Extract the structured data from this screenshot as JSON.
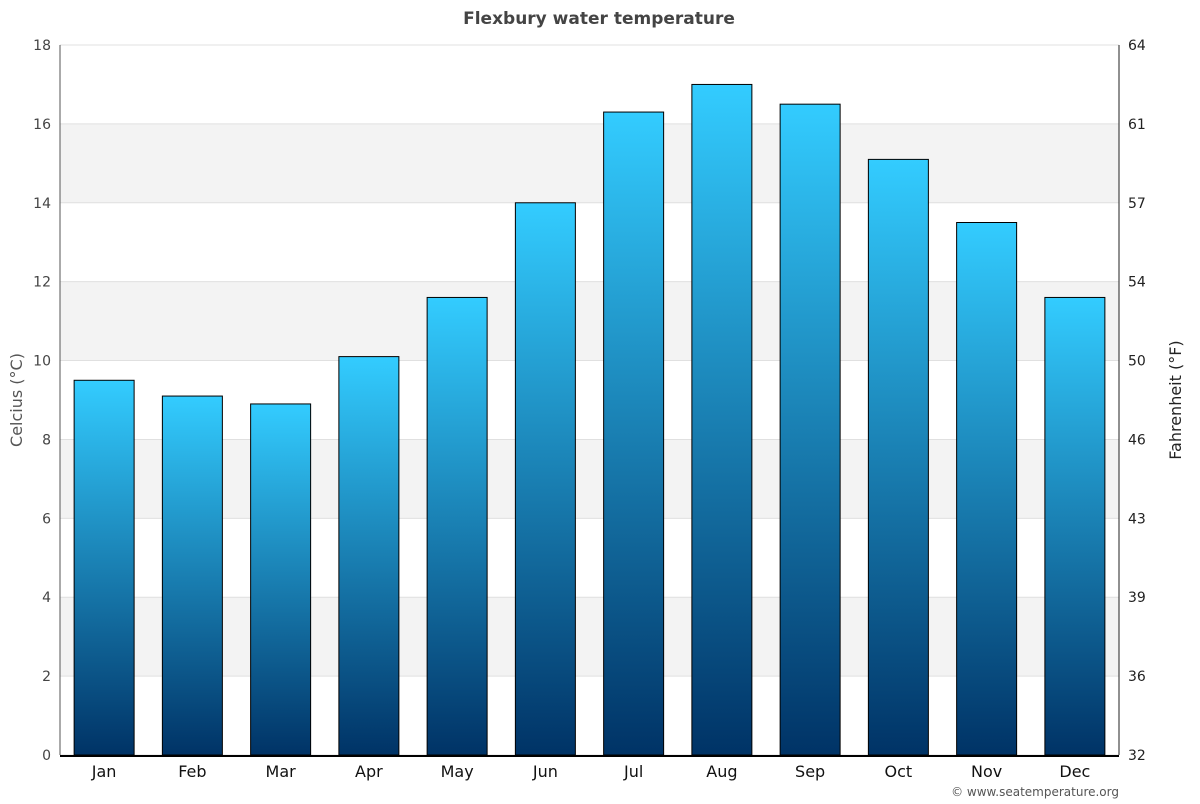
{
  "chart_data": {
    "type": "bar",
    "title": "Flexbury water temperature",
    "ylabel": "Celcius (°C)",
    "y2label": "Fahrenheit (°F)",
    "xlabel": "",
    "categories": [
      "Jan",
      "Feb",
      "Mar",
      "Apr",
      "May",
      "Jun",
      "Jul",
      "Aug",
      "Sep",
      "Oct",
      "Nov",
      "Dec"
    ],
    "values": [
      9.5,
      9.1,
      8.9,
      10.1,
      11.6,
      14.0,
      16.3,
      17.0,
      16.5,
      15.1,
      13.5,
      11.6
    ],
    "ylim": [
      0,
      18
    ],
    "yticks": [
      "0",
      "2",
      "4",
      "6",
      "8",
      "10",
      "12",
      "14",
      "16",
      "18"
    ],
    "y2ticks": [
      "32",
      "36",
      "39",
      "43",
      "46",
      "50",
      "54",
      "57",
      "61",
      "64"
    ],
    "grid": true,
    "colors": {
      "bar_top": "#33ccff",
      "bar_bottom": "#003366",
      "band": "#f3f3f3"
    }
  },
  "footer": {
    "credit": "© www.seatemperature.org"
  }
}
